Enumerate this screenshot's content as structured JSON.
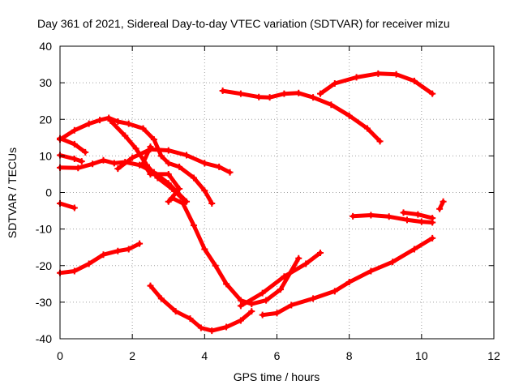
{
  "chart_data": {
    "type": "line",
    "title": "Day 361 of 2021, Sidereal Day-to-day VTEC variation (SDTVAR) for receiver mizu",
    "xlabel": "GPS time / hours",
    "ylabel": "SDTVAR / TECUs",
    "xlim": [
      0,
      12
    ],
    "ylim": [
      -40,
      40
    ],
    "xticks": [
      "0",
      "2",
      "4",
      "6",
      "8",
      "10",
      "12"
    ],
    "yticks": [
      "40",
      "30",
      "20",
      "10",
      "0",
      "-10",
      "-20",
      "-30",
      "-40"
    ],
    "grid": true,
    "series_color": "#ff0000",
    "series": [
      {
        "points": [
          [
            4.5,
            27.8
          ],
          [
            5.0,
            27.0
          ],
          [
            5.5,
            26.1
          ],
          [
            5.8,
            26.0
          ],
          [
            6.2,
            27.0
          ],
          [
            6.6,
            27.2
          ],
          [
            7.0,
            26.0
          ],
          [
            7.5,
            24.0
          ],
          [
            8.0,
            21.0
          ],
          [
            8.5,
            17.5
          ],
          [
            8.85,
            14.0
          ]
        ]
      },
      {
        "points": [
          [
            7.2,
            27.0
          ],
          [
            7.6,
            29.8
          ],
          [
            8.2,
            31.5
          ],
          [
            8.8,
            32.5
          ],
          [
            9.3,
            32.3
          ],
          [
            9.8,
            30.5
          ],
          [
            10.3,
            27.0
          ]
        ]
      },
      {
        "points": [
          [
            0.0,
            14.5
          ],
          [
            0.4,
            17.0
          ],
          [
            0.8,
            18.8
          ],
          [
            1.1,
            19.8
          ],
          [
            1.35,
            20.4
          ],
          [
            1.6,
            19.4
          ],
          [
            1.9,
            18.8
          ],
          [
            2.3,
            17.5
          ],
          [
            2.6,
            14.5
          ],
          [
            2.8,
            10.0
          ],
          [
            3.0,
            8.0
          ],
          [
            3.3,
            7.0
          ],
          [
            3.7,
            4.0
          ],
          [
            4.0,
            0.5
          ],
          [
            4.2,
            -3.0
          ]
        ]
      },
      {
        "points": [
          [
            0.0,
            14.8
          ],
          [
            0.4,
            13.2
          ],
          [
            0.7,
            11.0
          ]
        ]
      },
      {
        "points": [
          [
            0.0,
            10.2
          ],
          [
            0.4,
            9.2
          ],
          [
            0.6,
            8.5
          ]
        ]
      },
      {
        "points": [
          [
            0.0,
            6.8
          ],
          [
            0.5,
            6.7
          ],
          [
            0.9,
            7.8
          ],
          [
            1.2,
            8.8
          ],
          [
            1.5,
            8.0
          ],
          [
            1.8,
            8.3
          ],
          [
            2.2,
            7.5
          ],
          [
            2.6,
            5.5
          ],
          [
            3.0,
            2.5
          ],
          [
            3.5,
            -2.5
          ]
        ]
      },
      {
        "points": [
          [
            0.0,
            -3.0
          ],
          [
            0.4,
            -4.2
          ]
        ]
      },
      {
        "points": [
          [
            1.6,
            6.5
          ],
          [
            2.0,
            9.5
          ],
          [
            2.5,
            11.8
          ],
          [
            3.0,
            11.5
          ],
          [
            3.5,
            10.2
          ],
          [
            4.0,
            8.0
          ],
          [
            4.4,
            7.0
          ],
          [
            4.7,
            5.5
          ]
        ]
      },
      {
        "points": [
          [
            1.4,
            19.6
          ],
          [
            1.8,
            15.5
          ],
          [
            2.1,
            12.0
          ],
          [
            2.4,
            7.5
          ],
          [
            2.7,
            4.0
          ],
          [
            3.1,
            1.0
          ],
          [
            3.4,
            -1.8
          ]
        ]
      },
      {
        "points": [
          [
            2.5,
            12.5
          ],
          [
            2.3,
            8.0
          ],
          [
            2.5,
            5.0
          ],
          [
            3.0,
            5.0
          ],
          [
            3.3,
            1.0
          ],
          [
            3.0,
            -2.5
          ]
        ]
      },
      {
        "points": [
          [
            3.1,
            -1.5
          ],
          [
            3.4,
            -3.0
          ],
          [
            3.7,
            -9.0
          ],
          [
            4.0,
            -15.5
          ],
          [
            4.3,
            -20.0
          ],
          [
            4.6,
            -25.0
          ],
          [
            5.0,
            -29.5
          ],
          [
            5.3,
            -30.5
          ],
          [
            5.7,
            -29.5
          ],
          [
            6.1,
            -26.5
          ],
          [
            6.6,
            -18.0
          ]
        ]
      },
      {
        "points": [
          [
            5.0,
            -31.0
          ],
          [
            5.6,
            -27.5
          ],
          [
            6.2,
            -23.0
          ],
          [
            6.8,
            -19.5
          ],
          [
            7.2,
            -16.5
          ]
        ]
      },
      {
        "points": [
          [
            0.0,
            -22.0
          ],
          [
            0.4,
            -21.5
          ],
          [
            0.8,
            -19.5
          ],
          [
            1.2,
            -17.0
          ],
          [
            1.6,
            -16.0
          ],
          [
            1.9,
            -15.5
          ],
          [
            2.2,
            -14.0
          ]
        ]
      },
      {
        "points": [
          [
            2.5,
            -25.5
          ],
          [
            2.8,
            -29.0
          ],
          [
            3.2,
            -32.5
          ],
          [
            3.6,
            -34.5
          ],
          [
            3.9,
            -37.0
          ],
          [
            4.2,
            -37.8
          ],
          [
            4.6,
            -36.8
          ],
          [
            5.0,
            -35.0
          ],
          [
            5.3,
            -32.5
          ]
        ]
      },
      {
        "points": [
          [
            5.6,
            -33.5
          ],
          [
            6.0,
            -33.0
          ],
          [
            6.4,
            -30.8
          ],
          [
            7.0,
            -29.0
          ],
          [
            7.6,
            -27.0
          ],
          [
            8.0,
            -24.5
          ],
          [
            8.6,
            -21.5
          ],
          [
            9.2,
            -19.0
          ],
          [
            9.8,
            -15.5
          ],
          [
            10.3,
            -12.5
          ]
        ]
      },
      {
        "points": [
          [
            8.1,
            -6.5
          ],
          [
            8.6,
            -6.2
          ],
          [
            9.1,
            -6.6
          ],
          [
            9.6,
            -7.5
          ],
          [
            10.0,
            -8.0
          ],
          [
            10.3,
            -8.2
          ]
        ]
      },
      {
        "points": [
          [
            9.5,
            -5.5
          ],
          [
            9.9,
            -6.0
          ],
          [
            10.3,
            -7.0
          ]
        ]
      },
      {
        "points": [
          [
            10.5,
            -4.5
          ],
          [
            10.6,
            -2.5
          ]
        ]
      }
    ]
  }
}
